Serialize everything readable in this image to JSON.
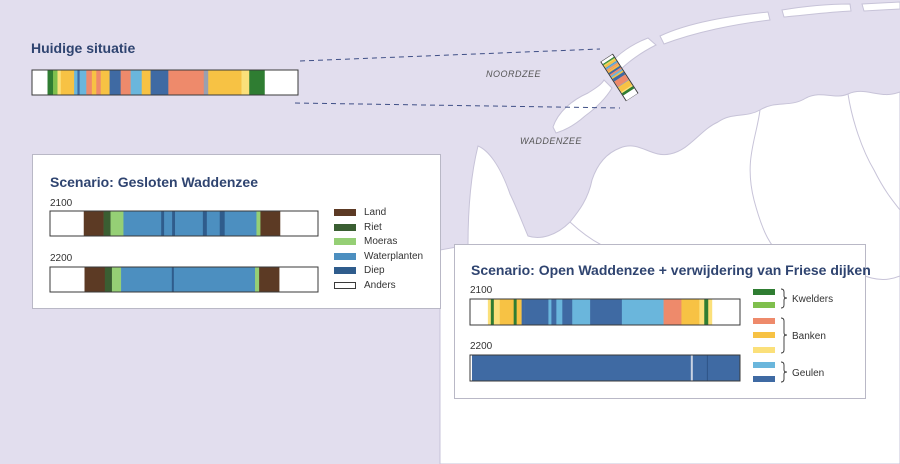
{
  "map": {
    "labels": {
      "noordzee": "NOORDZEE",
      "waddenzee": "WADDENZEE"
    }
  },
  "current": {
    "title": "Huidige situatie",
    "segments": [
      {
        "w": 14,
        "c": "#ffffff"
      },
      {
        "w": 3,
        "c": "#2f7d32"
      },
      {
        "w": 2,
        "c": "#2f7d32"
      },
      {
        "w": 4,
        "c": "#7fbf4d"
      },
      {
        "w": 3,
        "c": "#fbe07a"
      },
      {
        "w": 12,
        "c": "#f7c244"
      },
      {
        "w": 3,
        "c": "#6ab6dc"
      },
      {
        "w": 2,
        "c": "#3f6aa3"
      },
      {
        "w": 6,
        "c": "#6ab6dc"
      },
      {
        "w": 5,
        "c": "#ee8a6b"
      },
      {
        "w": 4,
        "c": "#f7c244"
      },
      {
        "w": 4,
        "c": "#ee8a6b"
      },
      {
        "w": 8,
        "c": "#f7c244"
      },
      {
        "w": 10,
        "c": "#3f6aa3"
      },
      {
        "w": 9,
        "c": "#ee8a6b"
      },
      {
        "w": 10,
        "c": "#6ab6dc"
      },
      {
        "w": 8,
        "c": "#f7c244"
      },
      {
        "w": 16,
        "c": "#3f6aa3"
      },
      {
        "w": 32,
        "c": "#ee8a6b"
      },
      {
        "w": 4,
        "c": "#9aa0b0"
      },
      {
        "w": 30,
        "c": "#f7c244"
      },
      {
        "w": 7,
        "c": "#fbe07a"
      },
      {
        "w": 14,
        "c": "#2f7d32"
      },
      {
        "w": 30,
        "c": "#ffffff"
      }
    ]
  },
  "closed": {
    "title": "Scenario: Gesloten Waddenzee",
    "rows": [
      {
        "year": "2100",
        "segments": [
          {
            "w": 34,
            "c": "#ffffff"
          },
          {
            "w": 20,
            "c": "#5c3a24"
          },
          {
            "w": 7,
            "c": "#3a5e32"
          },
          {
            "w": 13,
            "c": "#95cf75"
          },
          {
            "w": 38,
            "c": "#4c8fc0"
          },
          {
            "w": 3,
            "c": "#2f5c8c"
          },
          {
            "w": 8,
            "c": "#4c8fc0"
          },
          {
            "w": 3,
            "c": "#2f5c8c"
          },
          {
            "w": 28,
            "c": "#4c8fc0"
          },
          {
            "w": 4,
            "c": "#2f5c8c"
          },
          {
            "w": 13,
            "c": "#4c8fc0"
          },
          {
            "w": 5,
            "c": "#2f5c8c"
          },
          {
            "w": 32,
            "c": "#4c8fc0"
          },
          {
            "w": 4,
            "c": "#95cf75"
          },
          {
            "w": 20,
            "c": "#5c3a24"
          },
          {
            "w": 38,
            "c": "#ffffff"
          }
        ]
      },
      {
        "year": "2200",
        "segments": [
          {
            "w": 34,
            "c": "#ffffff"
          },
          {
            "w": 20,
            "c": "#5c3a24"
          },
          {
            "w": 7,
            "c": "#3a5e32"
          },
          {
            "w": 9,
            "c": "#95cf75"
          },
          {
            "w": 50,
            "c": "#4c8fc0"
          },
          {
            "w": 2,
            "c": "#2f5c8c"
          },
          {
            "w": 80,
            "c": "#4c8fc0"
          },
          {
            "w": 4,
            "c": "#95cf75"
          },
          {
            "w": 20,
            "c": "#5c3a24"
          },
          {
            "w": 38,
            "c": "#ffffff"
          }
        ]
      }
    ],
    "legend": [
      {
        "label": "Land",
        "color": "#5c3a24"
      },
      {
        "label": "Riet",
        "color": "#3a5e32"
      },
      {
        "label": "Moeras",
        "color": "#95cf75"
      },
      {
        "label": "Waterplanten",
        "color": "#4c8fc0"
      },
      {
        "label": "Diep",
        "color": "#2f5c8c"
      },
      {
        "label": "Anders",
        "color": "#ffffff"
      }
    ]
  },
  "open": {
    "title": "Scenario: Open Waddenzee + verwijdering van Friese dijken",
    "rows": [
      {
        "year": "2100",
        "segments": [
          {
            "w": 18,
            "c": "#ffffff"
          },
          {
            "w": 3,
            "c": "#fbe07a"
          },
          {
            "w": 3,
            "c": "#2f7d32"
          },
          {
            "w": 6,
            "c": "#fbe07a"
          },
          {
            "w": 14,
            "c": "#f7c244"
          },
          {
            "w": 3,
            "c": "#2f7d32"
          },
          {
            "w": 5,
            "c": "#f7c244"
          },
          {
            "w": 3,
            "c": "#3f6aa3"
          },
          {
            "w": 24,
            "c": "#3f6aa3"
          },
          {
            "w": 3,
            "c": "#6ab6dc"
          },
          {
            "w": 5,
            "c": "#3f6aa3"
          },
          {
            "w": 6,
            "c": "#6ab6dc"
          },
          {
            "w": 10,
            "c": "#3f6aa3"
          },
          {
            "w": 18,
            "c": "#6ab6dc"
          },
          {
            "w": 32,
            "c": "#3f6aa3"
          },
          {
            "w": 42,
            "c": "#6ab6dc"
          },
          {
            "w": 18,
            "c": "#ee8a6b"
          },
          {
            "w": 18,
            "c": "#f7c244"
          },
          {
            "w": 5,
            "c": "#fbe07a"
          },
          {
            "w": 4,
            "c": "#2f7d32"
          },
          {
            "w": 4,
            "c": "#fbe07a"
          },
          {
            "w": 28,
            "c": "#ffffff"
          }
        ]
      },
      {
        "year": "2200",
        "segments": [
          {
            "w": 2,
            "c": "#ffffff"
          },
          {
            "w": 218,
            "c": "#3f6aa3"
          },
          {
            "w": 2,
            "c": "#c9d3e3"
          },
          {
            "w": 14,
            "c": "#3f6aa3"
          },
          {
            "w": 1,
            "c": "#2f5487"
          },
          {
            "w": 32,
            "c": "#3f6aa3"
          }
        ]
      }
    ],
    "legend_swatches": [
      "#2f7d32",
      "#7fbf4d",
      "#ee8a6b",
      "#f7c244",
      "#fbe07a",
      "#6ab6dc",
      "#3f6aa3"
    ],
    "legend_groups": [
      {
        "label": "Kwelders"
      },
      {
        "label": "Banken"
      },
      {
        "label": "Geulen"
      }
    ]
  }
}
